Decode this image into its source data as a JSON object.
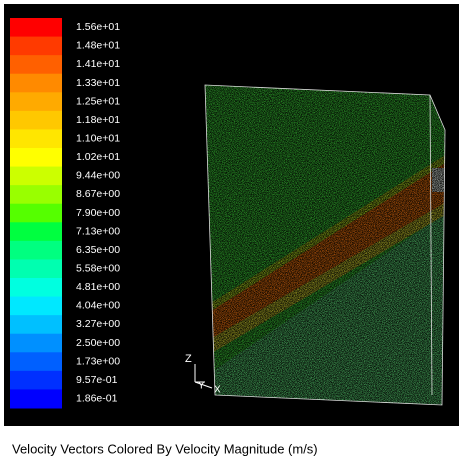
{
  "legend": {
    "levels": [
      {
        "label": "1.56e+01",
        "color": "#ff0000"
      },
      {
        "label": "1.48e+01",
        "color": "#ff3a00"
      },
      {
        "label": "1.41e+01",
        "color": "#ff6000"
      },
      {
        "label": "1.33e+01",
        "color": "#ff8a00"
      },
      {
        "label": "1.25e+01",
        "color": "#ffaa00"
      },
      {
        "label": "1.18e+01",
        "color": "#ffc800"
      },
      {
        "label": "1.10e+01",
        "color": "#ffe600"
      },
      {
        "label": "1.02e+01",
        "color": "#ffff00"
      },
      {
        "label": "9.44e+00",
        "color": "#ccff00"
      },
      {
        "label": "8.67e+00",
        "color": "#99ff00"
      },
      {
        "label": "7.90e+00",
        "color": "#55ff00"
      },
      {
        "label": "7.13e+00",
        "color": "#00ff40"
      },
      {
        "label": "6.35e+00",
        "color": "#00ff80"
      },
      {
        "label": "5.58e+00",
        "color": "#00ffb0"
      },
      {
        "label": "4.81e+00",
        "color": "#00ffe0"
      },
      {
        "label": "4.04e+00",
        "color": "#00e8ff"
      },
      {
        "label": "3.27e+00",
        "color": "#00c0ff"
      },
      {
        "label": "2.50e+00",
        "color": "#0090ff"
      },
      {
        "label": "1.73e+00",
        "color": "#0060ff"
      },
      {
        "label": "9.57e-01",
        "color": "#0030ff"
      },
      {
        "label": "1.86e-01",
        "color": "#0000ff"
      }
    ]
  },
  "axes": {
    "z": "Z",
    "y": "Y",
    "x": "X"
  },
  "caption": "Velocity Vectors Colored By Velocity Magnitude (m/s)"
}
